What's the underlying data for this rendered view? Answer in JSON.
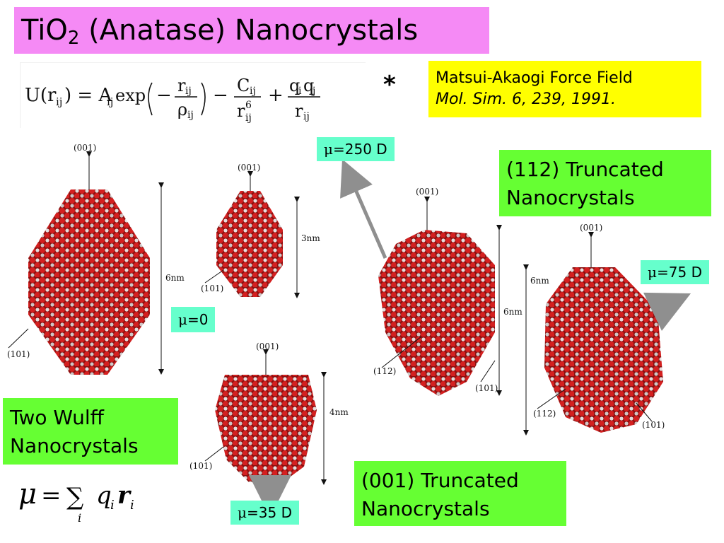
{
  "title": {
    "prefix": "TiO",
    "sub": "2",
    "rest": " (Anatase) Nanocrystals"
  },
  "citation": {
    "line1": "Matsui-Akaogi Force Field",
    "line2": "Mol. Sim. 6, 239, 1991."
  },
  "star": "*",
  "moments": {
    "m250": "=250 D",
    "m0": "=0",
    "m75": "=75 D",
    "m35": "=35 D",
    "mu_symbol": "μ"
  },
  "labels": {
    "two_wulff": "Two Wulff Nanocrystals",
    "t112": "(112) Truncated Nanocrystals",
    "t001": "(001) Truncated Nanocrystals"
  },
  "axes": {
    "f001": "(001)",
    "f101": "(101)",
    "f112": "(112)",
    "s6": "6nm",
    "s3": "3nm",
    "s4": "4nm"
  },
  "colors": {
    "oxygen": "#cc1a1a",
    "titanium": "#d9d0d0",
    "arrow": "#8f8f8f"
  }
}
